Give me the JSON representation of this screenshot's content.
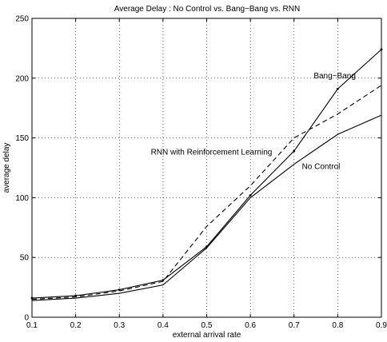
{
  "chart_data": {
    "type": "line",
    "title": "Average Delay : No Control vs. Bang−Bang vs. RNN",
    "xlabel": "external arrival rate",
    "ylabel": "average delay",
    "xlim": [
      0.1,
      0.9
    ],
    "ylim": [
      0,
      250
    ],
    "xticks": [
      "0.1",
      "0.2",
      "0.3",
      "0.4",
      "0.5",
      "0.6",
      "0.7",
      "0.8",
      "0.9"
    ],
    "yticks": [
      "0",
      "50",
      "100",
      "150",
      "200",
      "250"
    ],
    "grid": true,
    "x": [
      0.1,
      0.2,
      0.3,
      0.4,
      0.5,
      0.6,
      0.7,
      0.8,
      0.9
    ],
    "series": [
      {
        "name": "Bang−Bang",
        "style": "solid",
        "markers": true,
        "values": [
          16,
          18,
          23,
          31,
          59,
          102,
          139,
          191,
          224
        ]
      },
      {
        "name": "RNN with Reinforcement Learning",
        "style": "dashed",
        "markers": false,
        "values": [
          15,
          17,
          22,
          30,
          76,
          110,
          150,
          170,
          194
        ]
      },
      {
        "name": "No Control",
        "style": "solid",
        "markers": false,
        "values": [
          14,
          16,
          20,
          27,
          58,
          100,
          128,
          153,
          169
        ]
      }
    ],
    "annotations": [
      {
        "text": "Bang−Bang",
        "x": 0.745,
        "y": 200
      },
      {
        "text": "RNN with Reinforcement Learning",
        "x": 0.372,
        "y": 136
      },
      {
        "text": "No Control",
        "x": 0.718,
        "y": 124
      }
    ]
  }
}
